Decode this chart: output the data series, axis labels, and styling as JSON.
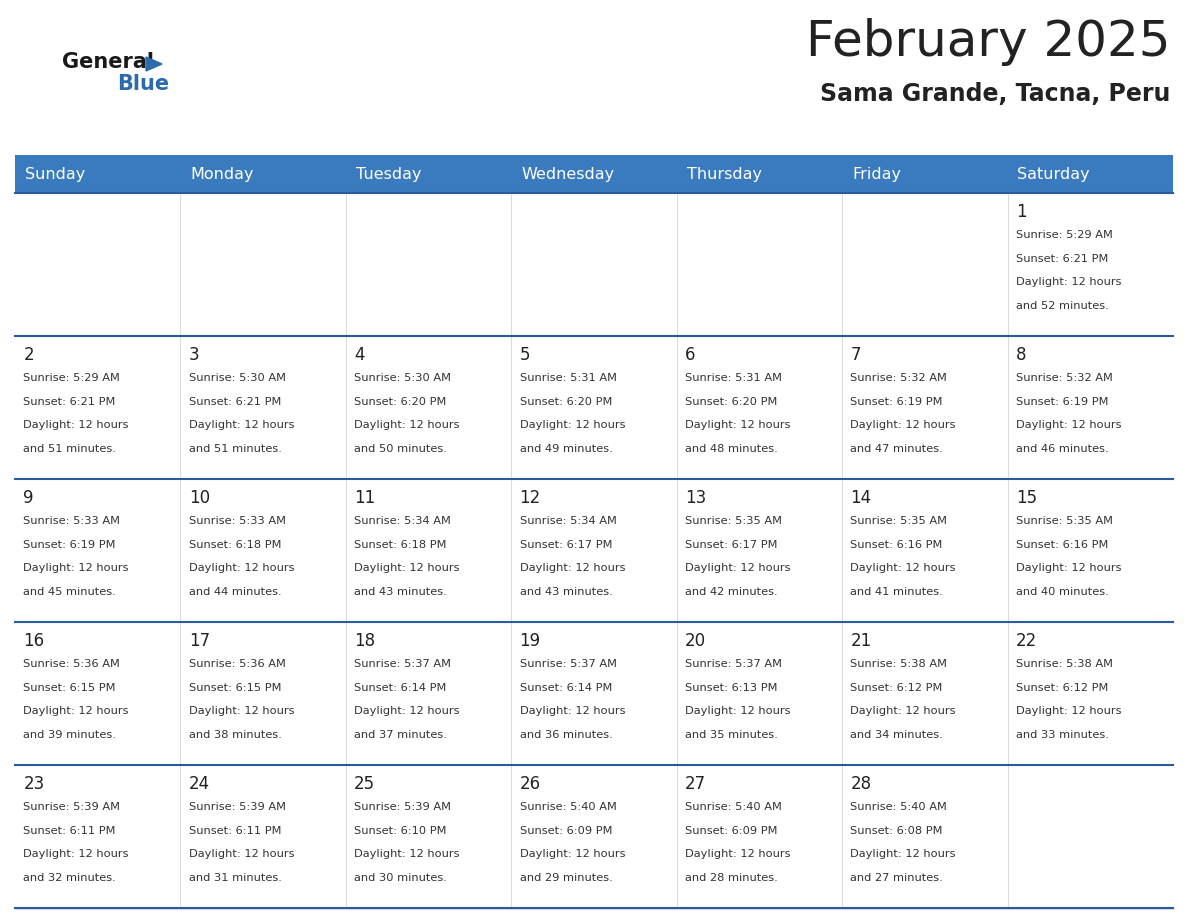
{
  "title": "February 2025",
  "subtitle": "Sama Grande, Tacna, Peru",
  "header_color": "#3a7abf",
  "header_text_color": "#ffffff",
  "cell_bg_color": "#ffffff",
  "border_color": "#2a5a9f",
  "text_color": "#222222",
  "info_text_color": "#333333",
  "days_of_week": [
    "Sunday",
    "Monday",
    "Tuesday",
    "Wednesday",
    "Thursday",
    "Friday",
    "Saturday"
  ],
  "logo_general_color": "#1a1a1a",
  "logo_blue_color": "#2a6aad",
  "logo_triangle_color": "#2a6aad",
  "calendar_data": [
    [
      {
        "day": null
      },
      {
        "day": null
      },
      {
        "day": null
      },
      {
        "day": null
      },
      {
        "day": null
      },
      {
        "day": null
      },
      {
        "day": 1,
        "sunrise": "5:29 AM",
        "sunset": "6:21 PM",
        "daylight": "12 hours and 52 minutes."
      }
    ],
    [
      {
        "day": 2,
        "sunrise": "5:29 AM",
        "sunset": "6:21 PM",
        "daylight": "12 hours and 51 minutes."
      },
      {
        "day": 3,
        "sunrise": "5:30 AM",
        "sunset": "6:21 PM",
        "daylight": "12 hours and 51 minutes."
      },
      {
        "day": 4,
        "sunrise": "5:30 AM",
        "sunset": "6:20 PM",
        "daylight": "12 hours and 50 minutes."
      },
      {
        "day": 5,
        "sunrise": "5:31 AM",
        "sunset": "6:20 PM",
        "daylight": "12 hours and 49 minutes."
      },
      {
        "day": 6,
        "sunrise": "5:31 AM",
        "sunset": "6:20 PM",
        "daylight": "12 hours and 48 minutes."
      },
      {
        "day": 7,
        "sunrise": "5:32 AM",
        "sunset": "6:19 PM",
        "daylight": "12 hours and 47 minutes."
      },
      {
        "day": 8,
        "sunrise": "5:32 AM",
        "sunset": "6:19 PM",
        "daylight": "12 hours and 46 minutes."
      }
    ],
    [
      {
        "day": 9,
        "sunrise": "5:33 AM",
        "sunset": "6:19 PM",
        "daylight": "12 hours and 45 minutes."
      },
      {
        "day": 10,
        "sunrise": "5:33 AM",
        "sunset": "6:18 PM",
        "daylight": "12 hours and 44 minutes."
      },
      {
        "day": 11,
        "sunrise": "5:34 AM",
        "sunset": "6:18 PM",
        "daylight": "12 hours and 43 minutes."
      },
      {
        "day": 12,
        "sunrise": "5:34 AM",
        "sunset": "6:17 PM",
        "daylight": "12 hours and 43 minutes."
      },
      {
        "day": 13,
        "sunrise": "5:35 AM",
        "sunset": "6:17 PM",
        "daylight": "12 hours and 42 minutes."
      },
      {
        "day": 14,
        "sunrise": "5:35 AM",
        "sunset": "6:16 PM",
        "daylight": "12 hours and 41 minutes."
      },
      {
        "day": 15,
        "sunrise": "5:35 AM",
        "sunset": "6:16 PM",
        "daylight": "12 hours and 40 minutes."
      }
    ],
    [
      {
        "day": 16,
        "sunrise": "5:36 AM",
        "sunset": "6:15 PM",
        "daylight": "12 hours and 39 minutes."
      },
      {
        "day": 17,
        "sunrise": "5:36 AM",
        "sunset": "6:15 PM",
        "daylight": "12 hours and 38 minutes."
      },
      {
        "day": 18,
        "sunrise": "5:37 AM",
        "sunset": "6:14 PM",
        "daylight": "12 hours and 37 minutes."
      },
      {
        "day": 19,
        "sunrise": "5:37 AM",
        "sunset": "6:14 PM",
        "daylight": "12 hours and 36 minutes."
      },
      {
        "day": 20,
        "sunrise": "5:37 AM",
        "sunset": "6:13 PM",
        "daylight": "12 hours and 35 minutes."
      },
      {
        "day": 21,
        "sunrise": "5:38 AM",
        "sunset": "6:12 PM",
        "daylight": "12 hours and 34 minutes."
      },
      {
        "day": 22,
        "sunrise": "5:38 AM",
        "sunset": "6:12 PM",
        "daylight": "12 hours and 33 minutes."
      }
    ],
    [
      {
        "day": 23,
        "sunrise": "5:39 AM",
        "sunset": "6:11 PM",
        "daylight": "12 hours and 32 minutes."
      },
      {
        "day": 24,
        "sunrise": "5:39 AM",
        "sunset": "6:11 PM",
        "daylight": "12 hours and 31 minutes."
      },
      {
        "day": 25,
        "sunrise": "5:39 AM",
        "sunset": "6:10 PM",
        "daylight": "12 hours and 30 minutes."
      },
      {
        "day": 26,
        "sunrise": "5:40 AM",
        "sunset": "6:09 PM",
        "daylight": "12 hours and 29 minutes."
      },
      {
        "day": 27,
        "sunrise": "5:40 AM",
        "sunset": "6:09 PM",
        "daylight": "12 hours and 28 minutes."
      },
      {
        "day": 28,
        "sunrise": "5:40 AM",
        "sunset": "6:08 PM",
        "daylight": "12 hours and 27 minutes."
      },
      {
        "day": null
      }
    ]
  ]
}
